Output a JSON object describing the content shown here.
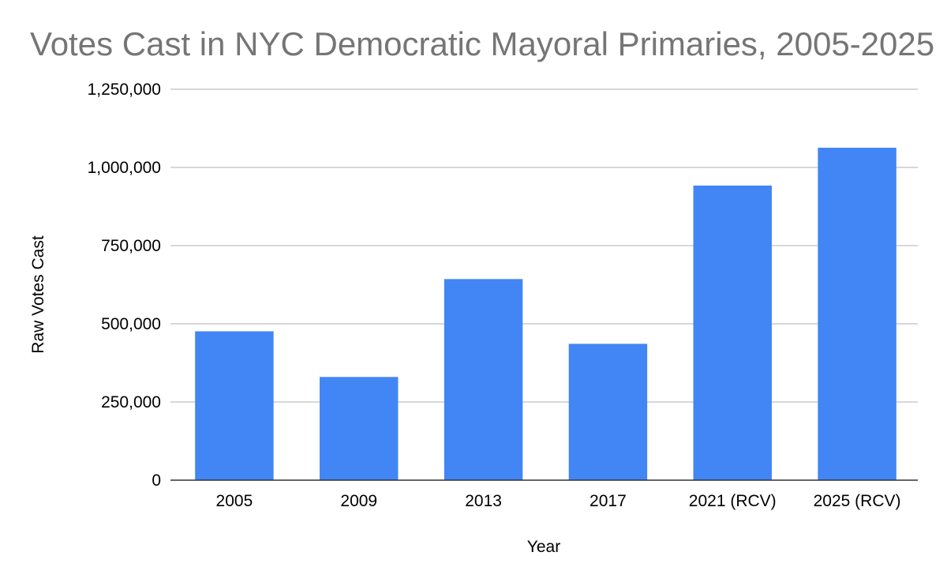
{
  "chart_data": {
    "type": "bar",
    "title": "Votes Cast in NYC Democratic Mayoral Primaries, 2005-2025",
    "xlabel": "Year",
    "ylabel": "Raw Votes Cast",
    "categories": [
      "2005",
      "2009",
      "2013",
      "2017",
      "2021 (RCV)",
      "2025 (RCV)"
    ],
    "series": [
      {
        "name": "Raw Votes Cast",
        "values": [
          476000,
          330000,
          643000,
          436000,
          942000,
          1063000
        ]
      }
    ],
    "ylim": [
      0,
      1250000
    ],
    "yticks": [
      0,
      250000,
      500000,
      750000,
      1000000,
      1250000
    ],
    "ytick_labels": [
      "0",
      "250,000",
      "500,000",
      "750,000",
      "1,000,000",
      "1,250,000"
    ],
    "grid": true,
    "bar_color": "#4285f4",
    "grid_color": "#cccccc",
    "title_color": "#757575"
  }
}
